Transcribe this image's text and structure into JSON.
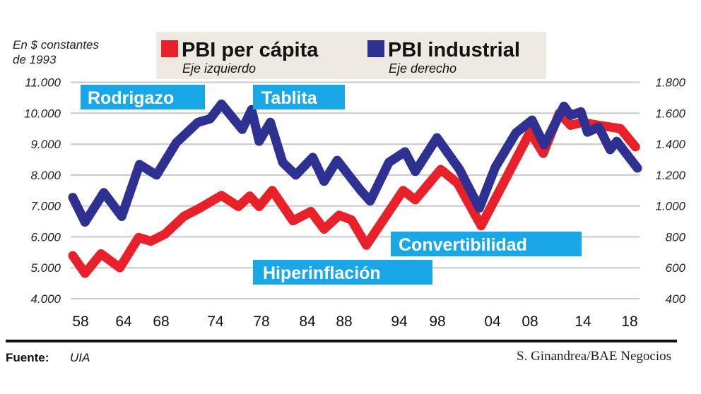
{
  "chart_data": {
    "type": "line",
    "unit_note_line1": "En $ constantes",
    "unit_note_line2": "de 1993",
    "xlim": [
      1958,
      2018
    ],
    "x_tick_labels": [
      "58",
      "64",
      "68",
      "74",
      "78",
      "84",
      "88",
      "94",
      "98",
      "04",
      "08",
      "14",
      "18"
    ],
    "y_left": {
      "ylim": [
        4000,
        11000
      ],
      "tick_labels": [
        "11.000",
        "10.000",
        "9.000",
        "8.000",
        "7.000",
        "6.000",
        "5.000",
        "4.000"
      ]
    },
    "y_right": {
      "ylim": [
        400,
        1800
      ],
      "tick_labels": [
        "1.800",
        "1.600",
        "1.400",
        "1.200",
        "1.000",
        "800",
        "600",
        "400"
      ]
    },
    "grid": true,
    "legend": {
      "placement": "top",
      "items": [
        {
          "label": "PBI per cápita",
          "sub": "Eje izquierdo",
          "color": "#e8202a"
        },
        {
          "label": "PBI industrial",
          "sub": "Eje derecho",
          "color": "#2e3192"
        }
      ]
    },
    "series": [
      {
        "name": "PBI per cápita",
        "axis": "left",
        "color": "#e8202a",
        "x": [
          1958,
          1959.3,
          1961,
          1963,
          1965,
          1966.3,
          1967.8,
          1969.8,
          1971.5,
          1973.8,
          1975.6,
          1976.8,
          1977.8,
          1979.2,
          1981.4,
          1983.3,
          1984.7,
          1986.3,
          1987.6,
          1989.2,
          1993.1,
          1994.4,
          1997.1,
          1998.9,
          2001.4,
          2006.6,
          2008,
          2009.7,
          2010.9,
          2012.1,
          2013.9,
          2016.2,
          2017.8
        ],
        "values": [
          5390,
          4820,
          5450,
          5000,
          5980,
          5860,
          6090,
          6660,
          6930,
          7340,
          6980,
          7320,
          6980,
          7500,
          6520,
          6820,
          6250,
          6700,
          6550,
          5730,
          7500,
          7200,
          8180,
          7730,
          6360,
          9390,
          8700,
          10000,
          9610,
          9700,
          9610,
          9500,
          8910
        ]
      },
      {
        "name": "PBI industrial",
        "axis": "right",
        "color": "#2e3192",
        "x": [
          1958,
          1959.3,
          1961.3,
          1963.2,
          1965.1,
          1966.9,
          1969,
          1971.3,
          1972.6,
          1973.8,
          1976,
          1977,
          1977.8,
          1979,
          1980.3,
          1981.7,
          1983.5,
          1984.7,
          1986.1,
          1988.6,
          1989.6,
          1991.6,
          1993.3,
          1994.4,
          1996.7,
          1999.1,
          2001.2,
          2002.9,
          2005.1,
          2006.8,
          2008.1,
          2010.2,
          2010.9,
          2012,
          2012.7,
          2013.9,
          2015.1,
          2015.8,
          2018
        ],
        "values": [
          1055,
          895,
          1086,
          932,
          1268,
          1200,
          1409,
          1541,
          1564,
          1659,
          1495,
          1623,
          1418,
          1541,
          1282,
          1200,
          1314,
          1159,
          1295,
          1100,
          1032,
          1282,
          1350,
          1223,
          1441,
          1236,
          986,
          1250,
          1473,
          1555,
          1395,
          1645,
          1586,
          1609,
          1477,
          1509,
          1364,
          1418,
          1245
        ]
      }
    ],
    "annotations": [
      "Rodrigazo",
      "Tablita",
      "Convertibilidad",
      "Hiperinflación"
    ],
    "annotation_color": "#1aa7e6"
  },
  "footer": {
    "source_label": "Fuente:",
    "source_value": "UIA",
    "credit": "S. Ginandrea/BAE Negocios"
  }
}
